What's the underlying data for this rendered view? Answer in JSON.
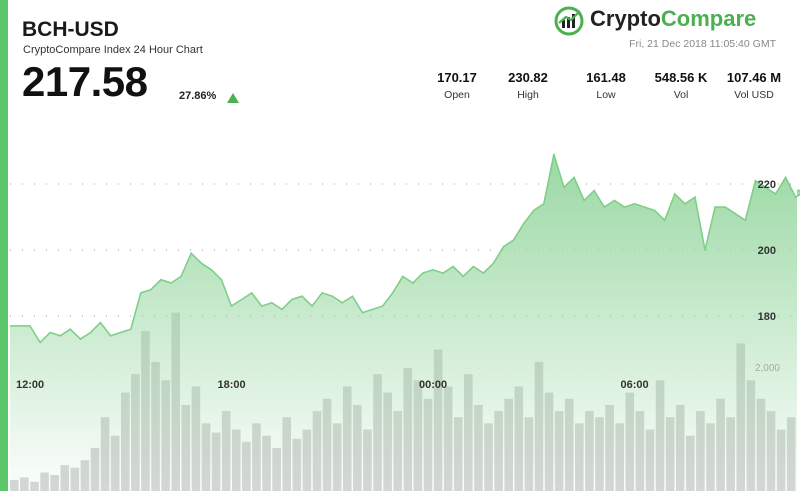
{
  "header": {
    "pair": "BCH-USD",
    "subtitle": "CryptoCompare Index 24 Hour Chart",
    "price": "217.58",
    "change": "27.86%",
    "logo_crypto": "Crypto",
    "logo_compare": "Compare",
    "timestamp": "Fri, 21 Dec 2018 11:05:40 GMT"
  },
  "stats": [
    {
      "value": "170.17",
      "label": "Open"
    },
    {
      "value": "230.82",
      "label": "High"
    },
    {
      "value": "161.48",
      "label": "Low"
    },
    {
      "value": "548.56 K",
      "label": "Vol"
    },
    {
      "value": "107.46 M",
      "label": "Vol USD"
    }
  ],
  "colors": {
    "accent": "#5cc66b",
    "line": "#7fcf88",
    "area_top": "#8fd499",
    "volume": "#b5b5b5",
    "up": "#4caf50"
  },
  "chart_data": {
    "type": "area",
    "x_ticks": [
      "12:00",
      "18:00",
      "00:00",
      "06:00"
    ],
    "y_ticks": [
      180,
      200,
      220
    ],
    "y_range": [
      160,
      240
    ],
    "volume_ticks": [
      "2,000"
    ],
    "series": [
      {
        "x": [
          0.0,
          0.3,
          0.6,
          0.9,
          1.2,
          1.5,
          1.8,
          2.1,
          2.4,
          2.7,
          3.0,
          3.3,
          3.6,
          3.9,
          4.2,
          4.5,
          4.8,
          5.1,
          5.4,
          5.7,
          6.0,
          6.3,
          6.6,
          6.9,
          7.2,
          7.5,
          7.8,
          8.1,
          8.4,
          8.7,
          9.0,
          9.3,
          9.6,
          9.9,
          10.2,
          10.5,
          10.8,
          11.1,
          11.4,
          11.7,
          12.0,
          12.3,
          12.6,
          12.9,
          13.2,
          13.5,
          13.8,
          14.1,
          14.4,
          14.7,
          15.0,
          15.3,
          15.6,
          15.9,
          16.2,
          16.5,
          16.8,
          17.1,
          17.4,
          17.7,
          18.0,
          18.3,
          18.6,
          18.9,
          19.2,
          19.5,
          19.8,
          20.1,
          20.4,
          20.7,
          21.0,
          21.3,
          21.6,
          21.9,
          22.2,
          22.5,
          22.8,
          23.1
        ],
        "values": [
          177,
          172,
          175,
          174,
          176,
          173,
          175,
          178,
          174,
          175,
          176,
          187,
          188,
          191,
          190,
          192,
          199,
          196,
          194,
          191,
          183,
          185,
          187,
          183,
          184,
          182,
          185,
          186,
          183,
          187,
          186,
          184,
          186,
          181,
          182,
          183,
          187,
          192,
          190,
          193,
          194,
          193,
          195,
          192,
          195,
          193,
          196,
          201,
          203,
          208,
          212,
          214,
          229,
          219,
          222,
          215,
          218,
          213,
          215,
          213,
          214,
          213,
          212,
          209,
          217,
          214,
          216,
          200,
          213,
          213,
          211,
          209,
          221,
          219,
          217,
          222,
          216,
          218
        ]
      }
    ],
    "volume": [
      180,
      220,
      150,
      300,
      260,
      420,
      380,
      500,
      700,
      1200,
      900,
      1600,
      1900,
      2600,
      2100,
      1800,
      2900,
      1400,
      1700,
      1100,
      950,
      1300,
      1000,
      800,
      1100,
      900,
      700,
      1200,
      850,
      1000,
      1300,
      1500,
      1100,
      1700,
      1400,
      1000,
      1900,
      1600,
      1300,
      2000,
      1800,
      1500,
      2300,
      1700,
      1200,
      1900,
      1400,
      1100,
      1300,
      1500,
      1700,
      1200,
      2100,
      1600,
      1300,
      1500,
      1100,
      1300,
      1200,
      1400,
      1100,
      1600,
      1300,
      1000,
      1800,
      1200,
      1400,
      900,
      1300,
      1100,
      1500,
      1200,
      2400,
      1800,
      1500,
      1300,
      1000,
      1200
    ]
  }
}
